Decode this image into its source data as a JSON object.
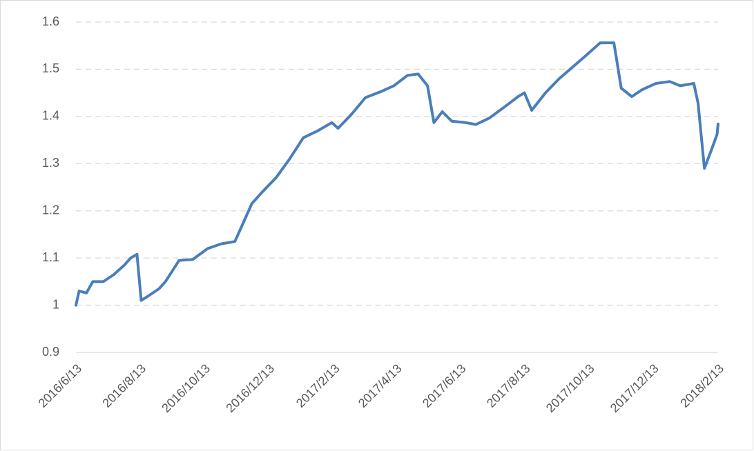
{
  "chart_data": {
    "type": "line",
    "x": [
      "2016/6/13",
      "2016/6/16",
      "2016/6/23",
      "2016/6/29",
      "2016/7/9",
      "2016/7/19",
      "2016/7/29",
      "2016/8/4",
      "2016/8/10",
      "2016/8/14",
      "2016/8/21",
      "2016/8/31",
      "2016/9/6",
      "2016/9/19",
      "2016/10/2",
      "2016/10/16",
      "2016/10/29",
      "2016/11/11",
      "2016/11/21",
      "2016/11/27",
      "2016/12/7",
      "2016/12/20",
      "2017/1/2",
      "2017/1/15",
      "2017/1/29",
      "2017/2/11",
      "2017/2/17",
      "2017/3/2",
      "2017/3/15",
      "2017/3/29",
      "2017/4/11",
      "2017/4/24",
      "2017/5/4",
      "2017/5/13",
      "2017/5/19",
      "2017/5/27",
      "2017/6/5",
      "2017/6/18",
      "2017/6/28",
      "2017/7/11",
      "2017/7/25",
      "2017/8/7",
      "2017/8/13",
      "2017/8/20",
      "2017/9/2",
      "2017/9/15",
      "2017/9/28",
      "2017/10/11",
      "2017/10/24",
      "2017/11/6",
      "2017/11/13",
      "2017/11/23",
      "2017/12/3",
      "2017/12/16",
      "2017/12/29",
      "2018/1/8",
      "2018/1/21",
      "2018/1/25",
      "2018/1/31",
      "2018/2/6",
      "2018/2/12",
      "2018/2/13"
    ],
    "series": [
      {
        "color": "#4a7ebb",
        "values": [
          1.0,
          1.03,
          1.026,
          1.05,
          1.05,
          1.065,
          1.085,
          1.1,
          1.108,
          1.01,
          1.02,
          1.035,
          1.05,
          1.095,
          1.097,
          1.12,
          1.13,
          1.135,
          1.185,
          1.215,
          1.24,
          1.27,
          1.31,
          1.355,
          1.37,
          1.387,
          1.375,
          1.405,
          1.44,
          1.452,
          1.465,
          1.487,
          1.49,
          1.465,
          1.387,
          1.41,
          1.39,
          1.387,
          1.383,
          1.397,
          1.42,
          1.442,
          1.45,
          1.413,
          1.45,
          1.48,
          1.505,
          1.53,
          1.556,
          1.556,
          1.46,
          1.442,
          1.457,
          1.47,
          1.474,
          1.465,
          1.47,
          1.428,
          1.29,
          1.325,
          1.362,
          1.384
        ]
      }
    ],
    "xlim": [
      "2016/6/13",
      "2018/2/13"
    ],
    "xticks": [
      "2016/6/13",
      "2016/8/13",
      "2016/10/13",
      "2016/12/13",
      "2017/2/13",
      "2017/4/13",
      "2017/6/13",
      "2017/8/13",
      "2017/10/13",
      "2017/12/13",
      "2018/2/13"
    ],
    "ylim": [
      0.9,
      1.6
    ],
    "yticks": [
      0.9,
      1,
      1.1,
      1.2,
      1.3,
      1.4,
      1.5,
      1.6
    ],
    "grid": true
  }
}
